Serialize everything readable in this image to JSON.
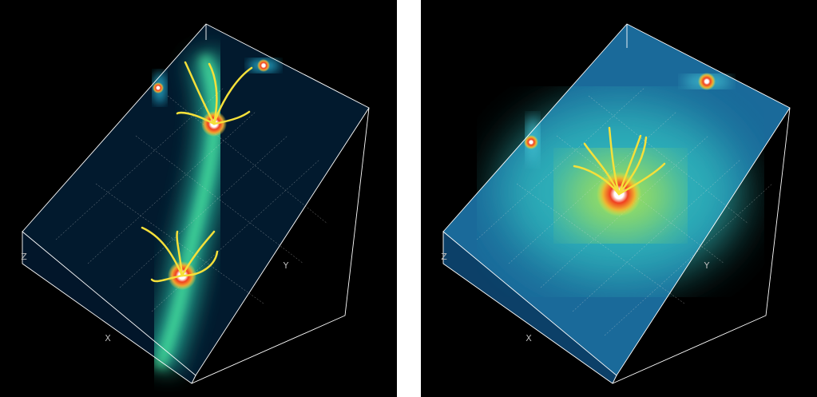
{
  "panels": [
    {
      "axis_labels": {
        "z": "Z",
        "y": "Y",
        "x": "X"
      }
    },
    {
      "axis_labels": {
        "z": "Z",
        "y": "Y",
        "x": "X"
      }
    }
  ]
}
